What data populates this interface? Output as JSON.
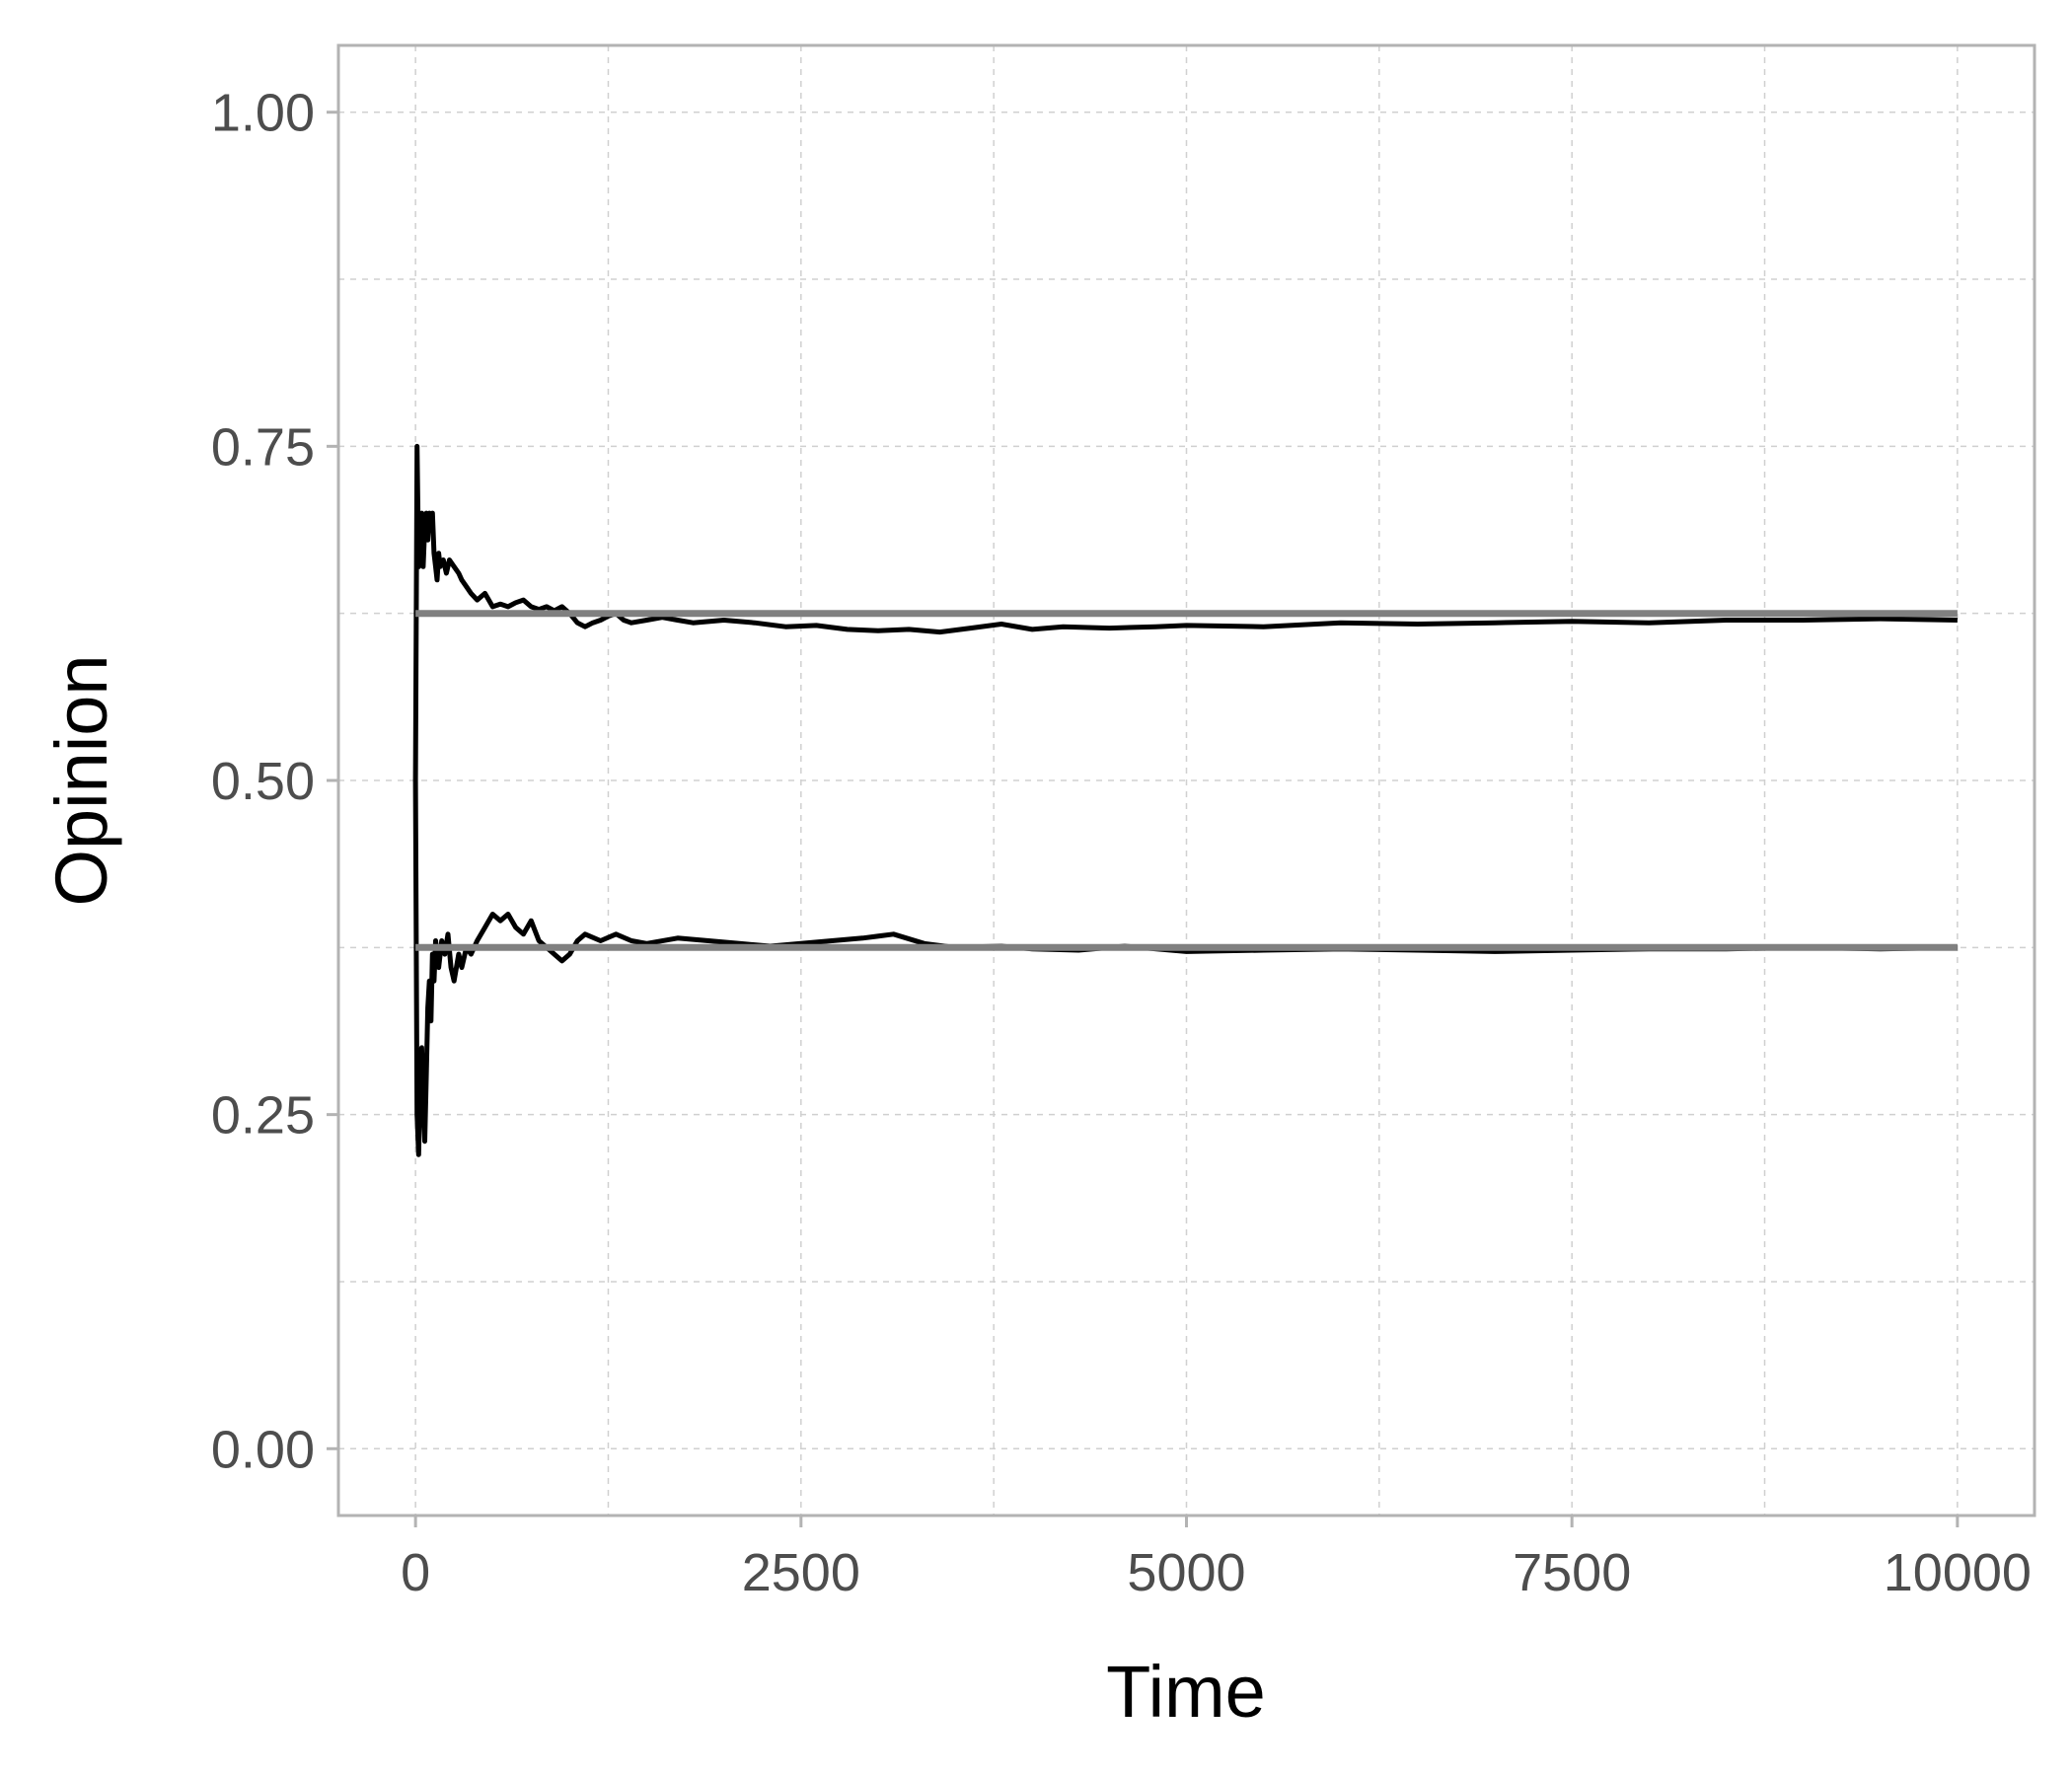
{
  "chart_data": {
    "type": "line",
    "title": "",
    "xlabel": "Time",
    "ylabel": "Opinion",
    "xlim": [
      -500,
      10500
    ],
    "ylim": [
      -0.05,
      1.05
    ],
    "x_ticks": [
      0,
      2500,
      5000,
      7500,
      10000
    ],
    "x_tick_labels": [
      "0",
      "2500",
      "5000",
      "7500",
      "10000"
    ],
    "y_ticks": [
      0,
      0.25,
      0.5,
      0.75,
      1
    ],
    "y_tick_labels": [
      "0.00",
      "0.25",
      "0.50",
      "0.75",
      "1.00"
    ],
    "grid": true,
    "grid_style": "dashed",
    "legend": "none",
    "colors": {
      "trajectory": "#000000",
      "reference": "#808080",
      "grid": "#d0d0d0",
      "frame": "#b3b3b3"
    },
    "series": [
      {
        "color": "#000000",
        "x": [
          0,
          10,
          20,
          30,
          40,
          50,
          60,
          70,
          80,
          90,
          100,
          110,
          120,
          130,
          140,
          150,
          160,
          180,
          200,
          220,
          250,
          280,
          300,
          330,
          360,
          400,
          450,
          500,
          550,
          600,
          650,
          700,
          750,
          800,
          850,
          900,
          950,
          1000,
          1050,
          1100,
          1150,
          1200,
          1250,
          1300,
          1350,
          1400,
          1500,
          1600,
          1700,
          1800,
          2000,
          2200,
          2400,
          2600,
          2800,
          3000,
          3200,
          3400,
          3600,
          3800,
          4000,
          4200,
          4500,
          4800,
          5000,
          5500,
          6000,
          6500,
          7000,
          7500,
          8000,
          8500,
          9000,
          9500,
          10000
        ],
        "values": [
          0.5,
          0.75,
          0.66,
          0.68,
          0.7,
          0.66,
          0.69,
          0.7,
          0.68,
          0.7,
          0.69,
          0.7,
          0.67,
          0.66,
          0.65,
          0.67,
          0.66,
          0.665,
          0.655,
          0.665,
          0.66,
          0.655,
          0.65,
          0.645,
          0.64,
          0.635,
          0.64,
          0.63,
          0.632,
          0.63,
          0.633,
          0.635,
          0.63,
          0.628,
          0.63,
          0.627,
          0.63,
          0.625,
          0.618,
          0.615,
          0.618,
          0.62,
          0.623,
          0.625,
          0.62,
          0.618,
          0.62,
          0.622,
          0.62,
          0.618,
          0.62,
          0.618,
          0.615,
          0.616,
          0.613,
          0.612,
          0.613,
          0.611,
          0.614,
          0.617,
          0.613,
          0.615,
          0.614,
          0.615,
          0.616,
          0.615,
          0.618,
          0.617,
          0.618,
          0.619,
          0.618,
          0.62,
          0.62,
          0.621,
          0.62
        ]
      },
      {
        "color": "#000000",
        "x": [
          0,
          10,
          20,
          30,
          40,
          50,
          60,
          70,
          80,
          90,
          100,
          110,
          120,
          130,
          150,
          170,
          190,
          210,
          230,
          250,
          280,
          300,
          330,
          360,
          400,
          450,
          500,
          550,
          600,
          650,
          700,
          750,
          800,
          850,
          900,
          950,
          1000,
          1050,
          1100,
          1200,
          1300,
          1400,
          1500,
          1700,
          1900,
          2100,
          2300,
          2500,
          2700,
          2900,
          3100,
          3300,
          3500,
          3800,
          4000,
          4300,
          4600,
          5000,
          5500,
          6000,
          6500,
          7000,
          7500,
          8000,
          8500,
          9000,
          9500,
          10000
        ],
        "values": [
          0.5,
          0.25,
          0.22,
          0.27,
          0.3,
          0.26,
          0.23,
          0.28,
          0.33,
          0.35,
          0.32,
          0.37,
          0.35,
          0.38,
          0.36,
          0.38,
          0.37,
          0.385,
          0.36,
          0.35,
          0.37,
          0.36,
          0.375,
          0.37,
          0.38,
          0.39,
          0.4,
          0.395,
          0.4,
          0.39,
          0.385,
          0.395,
          0.38,
          0.375,
          0.37,
          0.365,
          0.37,
          0.38,
          0.385,
          0.38,
          0.385,
          0.38,
          0.378,
          0.382,
          0.38,
          0.378,
          0.376,
          0.378,
          0.38,
          0.382,
          0.385,
          0.378,
          0.375,
          0.376,
          0.374,
          0.373,
          0.376,
          0.372,
          0.373,
          0.374,
          0.373,
          0.372,
          0.373,
          0.374,
          0.374,
          0.375,
          0.374,
          0.375
        ]
      },
      {
        "color": "#808080",
        "x": [
          0,
          10000
        ],
        "values": [
          0.625,
          0.625
        ]
      },
      {
        "color": "#808080",
        "x": [
          0,
          10000
        ],
        "values": [
          0.375,
          0.375
        ]
      }
    ]
  }
}
